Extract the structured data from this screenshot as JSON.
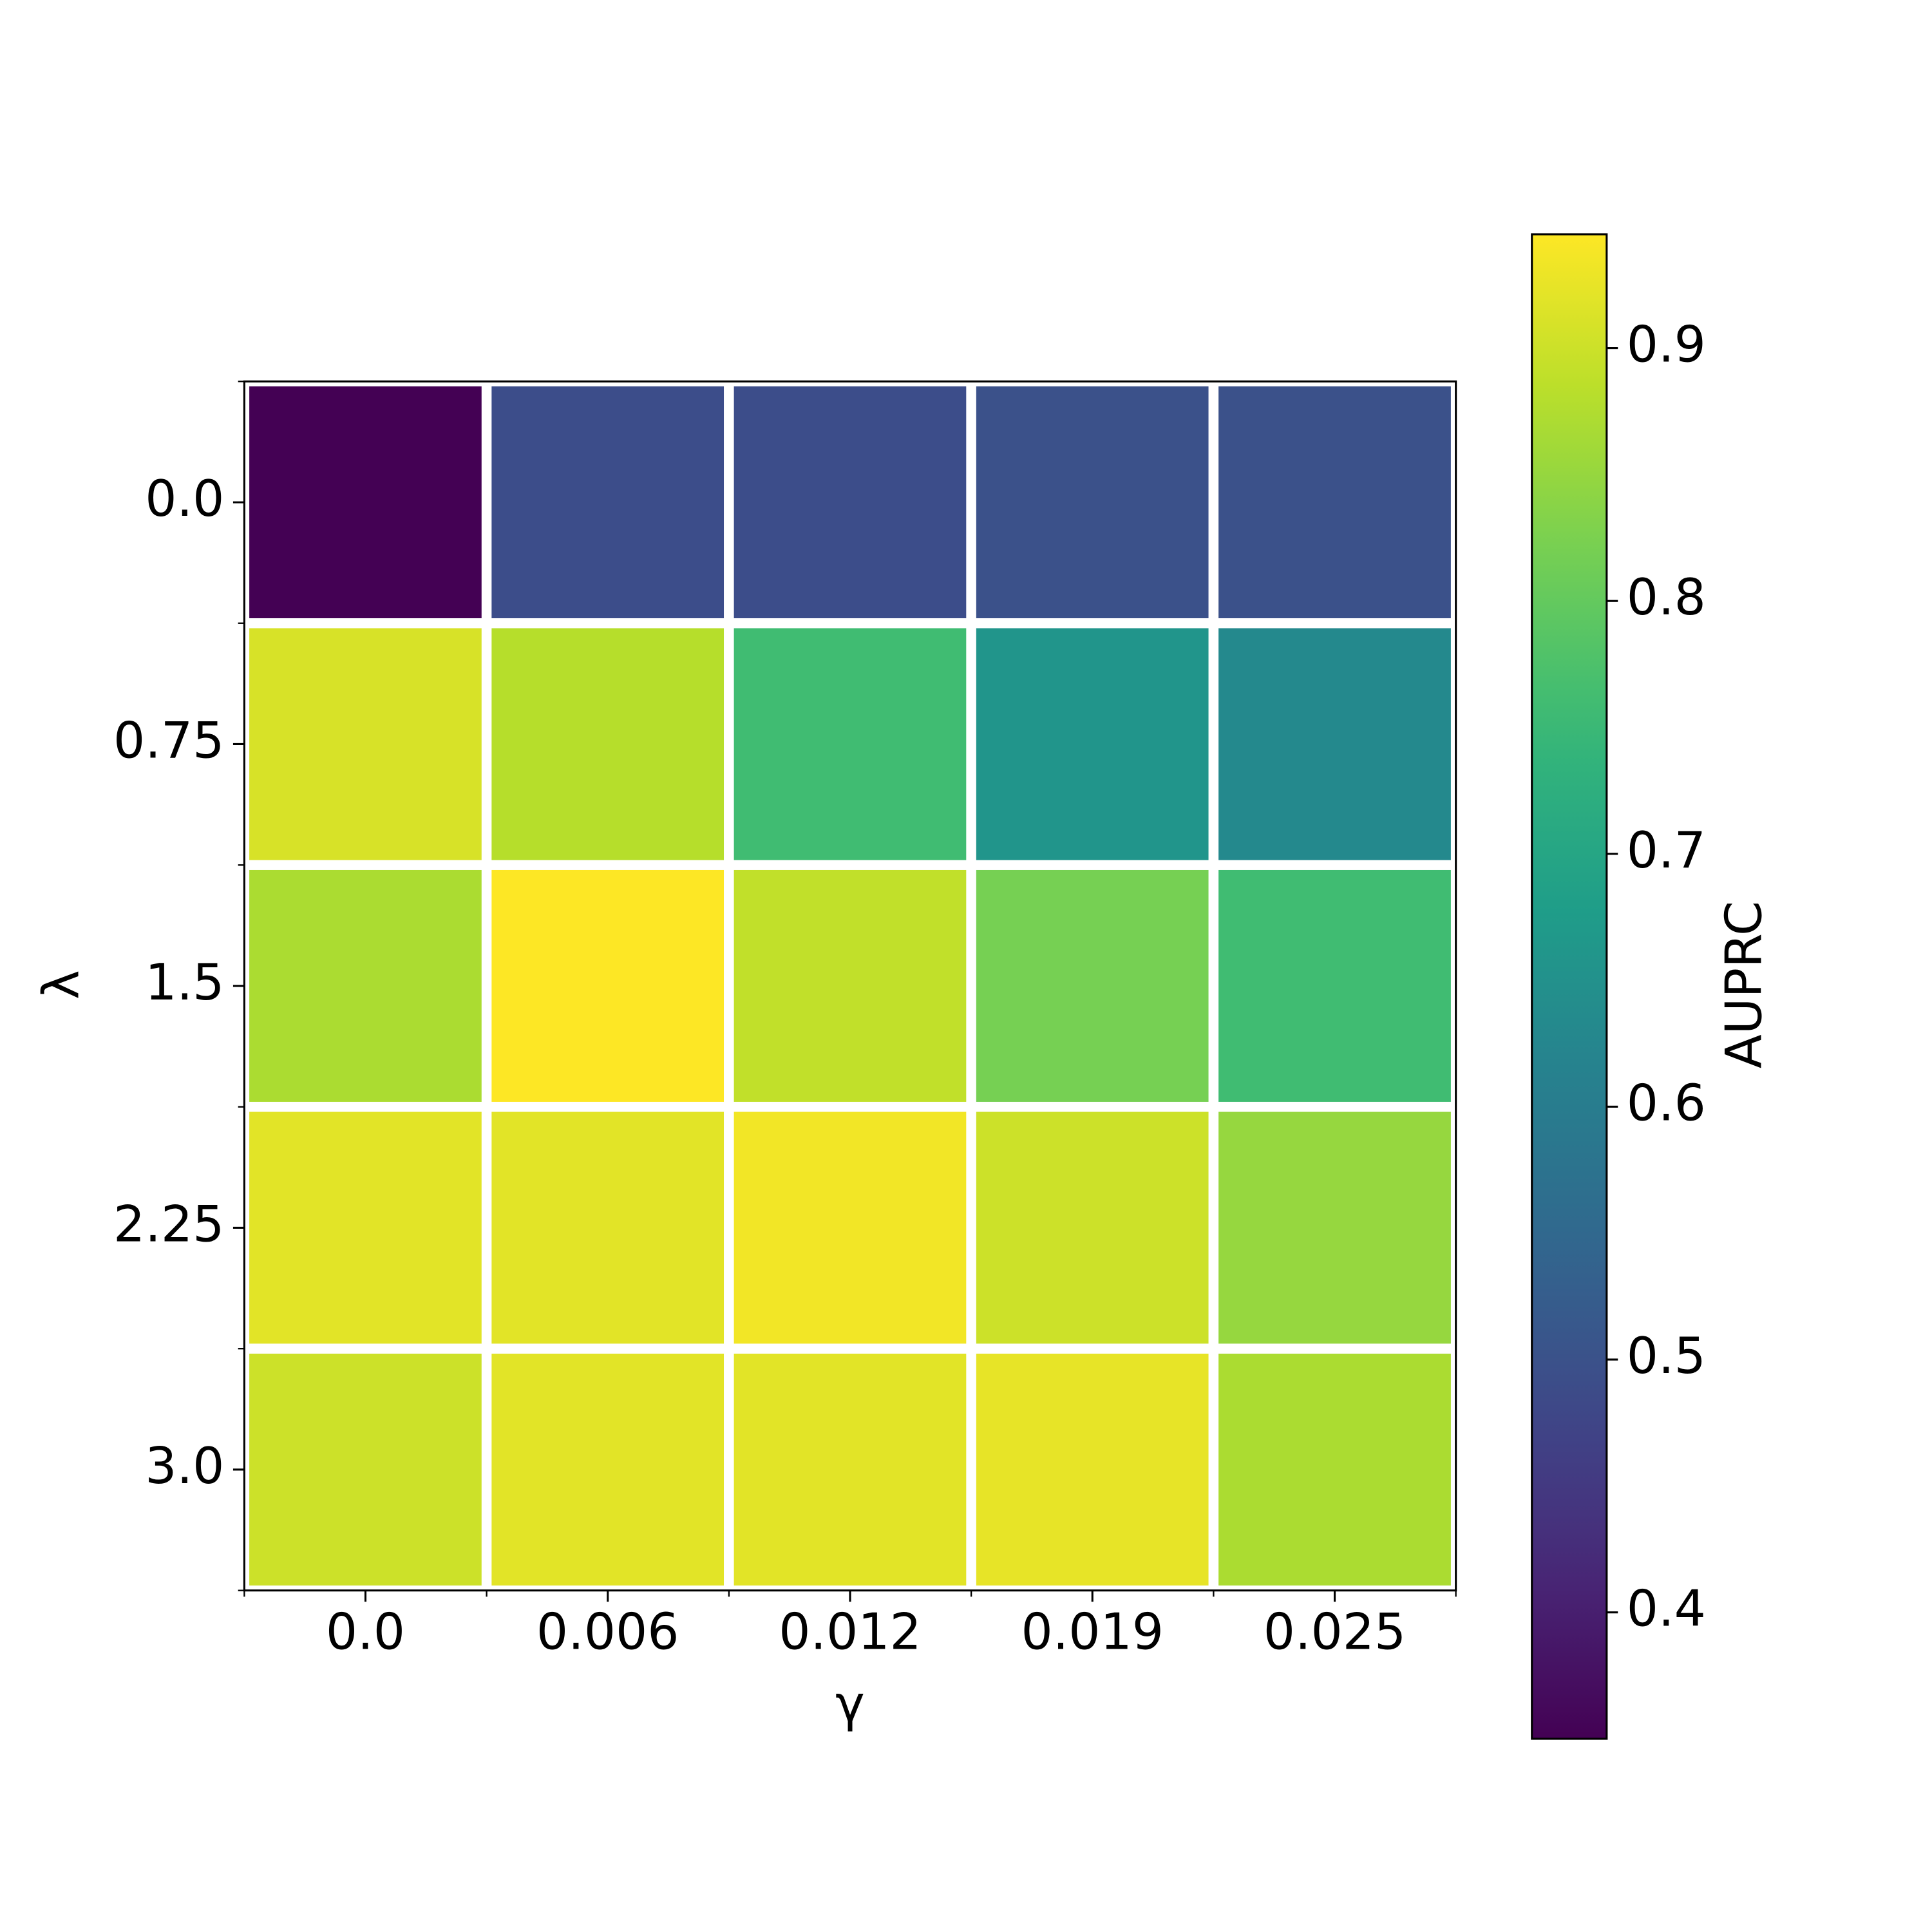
{
  "chart_data": {
    "type": "heatmap",
    "x_label": "γ",
    "y_label": "λ",
    "colorbar_label": "AUPRC",
    "x_categories": [
      "0.0",
      "0.006",
      "0.012",
      "0.019",
      "0.025"
    ],
    "y_categories": [
      "0.0",
      "0.75",
      "1.5",
      "2.25",
      "3.0"
    ],
    "values": [
      [
        0.35,
        0.49,
        0.49,
        0.5,
        0.5
      ],
      [
        0.91,
        0.88,
        0.76,
        0.66,
        0.63
      ],
      [
        0.87,
        0.945,
        0.89,
        0.82,
        0.76
      ],
      [
        0.92,
        0.92,
        0.935,
        0.9,
        0.85
      ],
      [
        0.9,
        0.92,
        0.92,
        0.925,
        0.87
      ]
    ],
    "colormap": "viridis",
    "clim": [
      0.35,
      0.945
    ],
    "cticks": [
      0.4,
      0.5,
      0.6,
      0.7,
      0.8,
      0.9
    ]
  }
}
